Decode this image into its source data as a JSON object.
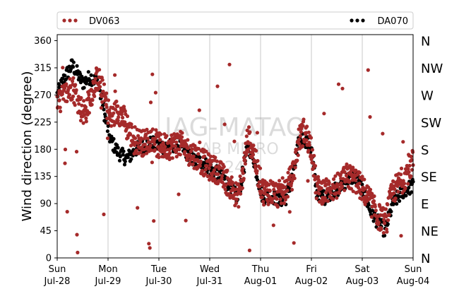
{
  "chart_data": {
    "type": "scatter",
    "ylabel": "Wind direction (degree)",
    "ylim": [
      0,
      370
    ],
    "yticks": [
      0,
      45,
      90,
      135,
      180,
      225,
      270,
      315,
      360
    ],
    "compass": [
      {
        "label": "N",
        "deg": 360
      },
      {
        "label": "NW",
        "deg": 315
      },
      {
        "label": "W",
        "deg": 270
      },
      {
        "label": "SW",
        "deg": 225
      },
      {
        "label": "S",
        "deg": 180
      },
      {
        "label": "SE",
        "deg": 135
      },
      {
        "label": "E",
        "deg": 90
      },
      {
        "label": "NE",
        "deg": 45
      },
      {
        "label": "N",
        "deg": 0
      }
    ],
    "xlim": [
      0,
      7
    ],
    "xticks": [
      {
        "day": "Sun",
        "date": "Jul-28"
      },
      {
        "day": "Mon",
        "date": "Jul-29"
      },
      {
        "day": "Tue",
        "date": "Jul-30"
      },
      {
        "day": "Wed",
        "date": "Jul-31"
      },
      {
        "day": "Thu",
        "date": "Aug-01"
      },
      {
        "day": "Fri",
        "date": "Aug-02"
      },
      {
        "day": "Sat",
        "date": "Aug-03"
      },
      {
        "day": "Sun",
        "date": "Aug-04"
      }
    ],
    "grid": "vertical",
    "legend_position": "top",
    "watermark": [
      "IAG-MATAO",
      "LAB MICRO",
      "2024"
    ],
    "series": [
      {
        "name": "DV063",
        "color": "#a52a2a",
        "trend": [
          [
            0.0,
            255
          ],
          [
            0.15,
            270
          ],
          [
            0.3,
            285
          ],
          [
            0.45,
            250
          ],
          [
            0.55,
            240
          ],
          [
            0.7,
            280
          ],
          [
            0.8,
            300
          ],
          [
            0.95,
            260
          ],
          [
            1.05,
            230
          ],
          [
            1.2,
            245
          ],
          [
            1.35,
            225
          ],
          [
            1.45,
            205
          ],
          [
            1.55,
            195
          ],
          [
            1.7,
            190
          ],
          [
            1.85,
            200
          ],
          [
            2.0,
            185
          ],
          [
            2.2,
            185
          ],
          [
            2.4,
            190
          ],
          [
            2.55,
            178
          ],
          [
            2.7,
            170
          ],
          [
            2.85,
            160
          ],
          [
            3.0,
            150
          ],
          [
            3.15,
            145
          ],
          [
            3.3,
            130
          ],
          [
            3.45,
            115
          ],
          [
            3.55,
            100
          ],
          [
            3.65,
            135
          ],
          [
            3.75,
            200
          ],
          [
            3.85,
            180
          ],
          [
            3.95,
            140
          ],
          [
            4.05,
            110
          ],
          [
            4.2,
            110
          ],
          [
            4.35,
            105
          ],
          [
            4.5,
            115
          ],
          [
            4.65,
            140
          ],
          [
            4.75,
            195
          ],
          [
            4.85,
            210
          ],
          [
            5.0,
            185
          ],
          [
            5.1,
            115
          ],
          [
            5.25,
            110
          ],
          [
            5.4,
            115
          ],
          [
            5.55,
            120
          ],
          [
            5.7,
            135
          ],
          [
            5.85,
            130
          ],
          [
            6.0,
            115
          ],
          [
            6.15,
            95
          ],
          [
            6.3,
            70
          ],
          [
            6.45,
            60
          ],
          [
            6.6,
            110
          ],
          [
            6.8,
            130
          ],
          [
            7.0,
            160
          ]
        ],
        "spread": 22
      },
      {
        "name": "DA070",
        "color": "#000000",
        "trend": [
          [
            0.0,
            270
          ],
          [
            0.15,
            300
          ],
          [
            0.3,
            320
          ],
          [
            0.5,
            290
          ],
          [
            0.65,
            300
          ],
          [
            0.8,
            290
          ],
          [
            0.95,
            230
          ],
          [
            1.05,
            195
          ],
          [
            1.2,
            175
          ],
          [
            1.35,
            165
          ],
          [
            1.45,
            170
          ],
          [
            1.55,
            180
          ],
          [
            1.7,
            185
          ],
          [
            1.85,
            190
          ],
          [
            2.0,
            185
          ],
          [
            2.2,
            185
          ],
          [
            2.4,
            190
          ],
          [
            2.55,
            175
          ],
          [
            2.7,
            160
          ],
          [
            2.85,
            160
          ],
          [
            3.0,
            148
          ],
          [
            3.15,
            140
          ],
          [
            3.3,
            130
          ],
          [
            3.45,
            110
          ],
          [
            3.55,
            100
          ],
          [
            3.65,
            140
          ],
          [
            3.75,
            185
          ],
          [
            3.85,
            170
          ],
          [
            3.95,
            130
          ],
          [
            4.05,
            100
          ],
          [
            4.2,
            105
          ],
          [
            4.35,
            95
          ],
          [
            4.5,
            100
          ],
          [
            4.65,
            140
          ],
          [
            4.75,
            190
          ],
          [
            4.85,
            200
          ],
          [
            5.0,
            180
          ],
          [
            5.1,
            110
          ],
          [
            5.25,
            100
          ],
          [
            5.4,
            110
          ],
          [
            5.55,
            115
          ],
          [
            5.7,
            130
          ],
          [
            5.85,
            135
          ],
          [
            6.0,
            115
          ],
          [
            6.15,
            80
          ],
          [
            6.3,
            60
          ],
          [
            6.45,
            45
          ],
          [
            6.6,
            90
          ],
          [
            6.8,
            110
          ],
          [
            7.0,
            120
          ]
        ],
        "spread": 12
      }
    ]
  }
}
